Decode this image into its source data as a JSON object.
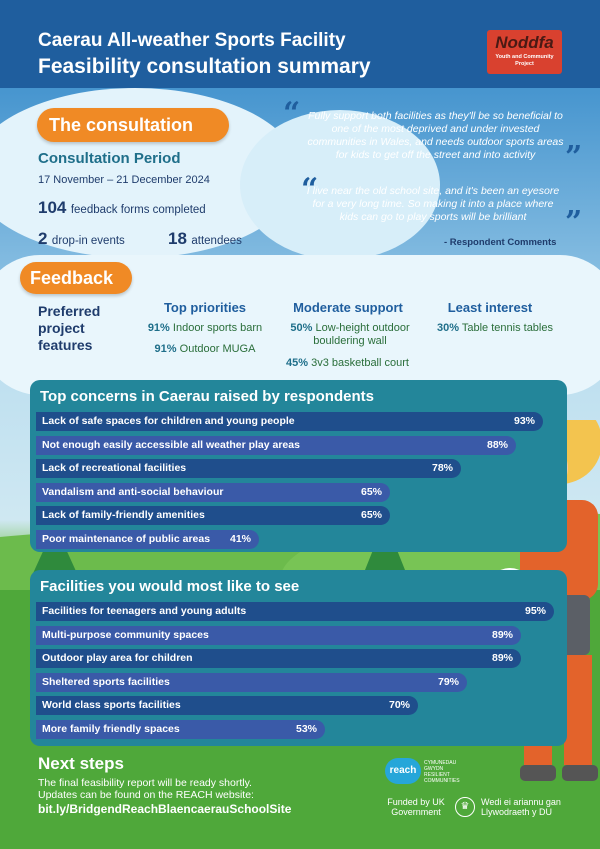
{
  "header": {
    "title_line1": "Caerau All-weather Sports Facility",
    "title_line2": "Feasibility consultation summary",
    "logo": {
      "name": "Noddfa",
      "subtitle": "Youth and Community Project"
    }
  },
  "consultation": {
    "heading": "The consultation",
    "period_title": "Consultation Period",
    "period_dates": "17 November – 21 December 2024",
    "forms_count": "104",
    "forms_label": "feedback forms completed",
    "dropin_count": "2",
    "dropin_label": "drop-in events",
    "attendees_count": "18",
    "attendees_label": "attendees"
  },
  "quotes": {
    "items": [
      "Fully support both facilities as they'll be so beneficial to one of the most deprived and under invested communities in Wales, and needs outdoor sports areas for kids to get off the street and into activity",
      "I live near the old school site, and it's been an eyesore for a very long time. So making it into a place where kids can go to play sports will be brilliant"
    ],
    "credit": "- Respondent Comments"
  },
  "feedback": {
    "heading": "Feedback",
    "preferred_label": "Preferred project features",
    "columns": [
      {
        "title": "Top priorities",
        "items": [
          {
            "pct": "91%",
            "label": "Indoor sports barn"
          },
          {
            "pct": "91%",
            "label": "Outdoor MUGA"
          }
        ]
      },
      {
        "title": "Moderate support",
        "items": [
          {
            "pct": "50%",
            "label": "Low-height outdoor bouldering wall"
          },
          {
            "pct": "45%",
            "label": "3v3 basketball court"
          }
        ]
      },
      {
        "title": "Least interest",
        "items": [
          {
            "pct": "30%",
            "label": "Table tennis tables"
          }
        ]
      }
    ]
  },
  "chart_data": [
    {
      "type": "bar",
      "title": "Top concerns in Caerau raised by respondents",
      "categories": [
        "Lack of safe spaces for children and young people",
        "Not enough easily accessible all weather play areas",
        "Lack of recreational facilities",
        "Vandalism and anti-social behaviour",
        "Lack of family-friendly amenities",
        "Poor maintenance of public areas"
      ],
      "values": [
        93,
        88,
        78,
        65,
        65,
        41
      ],
      "labels": [
        "93%",
        "88%",
        "78%",
        "65%",
        "65%",
        "41%"
      ],
      "xlim": [
        0,
        100
      ]
    },
    {
      "type": "bar",
      "title": "Facilities you would most like to see",
      "categories": [
        "Facilities for teenagers and young adults",
        "Multi-purpose community spaces",
        "Outdoor play area for children",
        "Sheltered sports facilities",
        "World class sports facilities",
        "More family friendly spaces"
      ],
      "values": [
        95,
        89,
        89,
        79,
        70,
        53
      ],
      "labels": [
        "95%",
        "89%",
        "89%",
        "79%",
        "70%",
        "53%"
      ],
      "xlim": [
        0,
        100
      ]
    }
  ],
  "next_steps": {
    "heading": "Next steps",
    "body": "The final feasibility report will be ready shortly. Updates can be found on the REACH website:",
    "link": "bit.ly/BridgendReachBlaencaerauSchoolSite"
  },
  "footer": {
    "reach_logo": "reach",
    "reach_sub": "CYMUNEDAU GWYDN RESILIENT COMMUNITIES",
    "funded_by": "Funded by UK Government",
    "welsh_funded": "Wedi ei ariannu gan Llywodraeth y DU"
  },
  "colors": {
    "header": "#1f5e9e",
    "accent_orange": "#f08a25",
    "panel": "#23869a",
    "bar_dark": "#1f4e8c",
    "bar_light": "#3a5aa8"
  }
}
